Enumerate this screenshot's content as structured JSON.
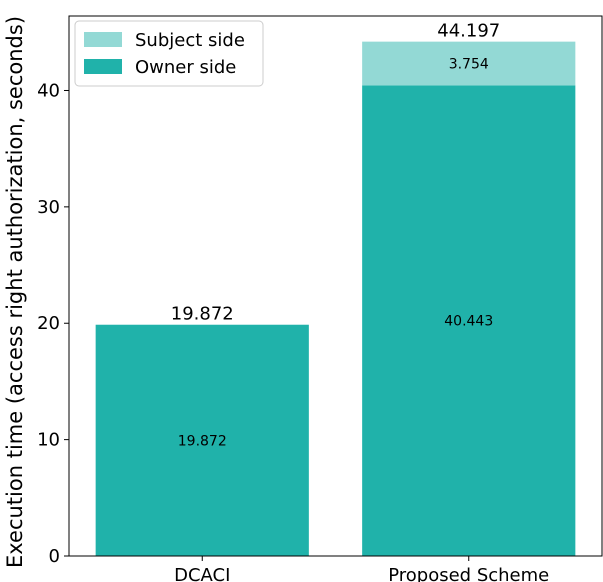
{
  "chart_data": {
    "type": "bar",
    "stacked": true,
    "categories": [
      "DCACI",
      "Proposed Scheme"
    ],
    "series": [
      {
        "name": "Owner side",
        "values": [
          19.872,
          40.443
        ],
        "color": "#20b2aa"
      },
      {
        "name": "Subject side",
        "values": [
          0,
          3.754
        ],
        "color": "#93d9d5"
      }
    ],
    "segment_labels": [
      [
        "19.872",
        "40.443"
      ],
      [
        null,
        "3.754"
      ]
    ],
    "totals": [
      "19.872",
      "44.197"
    ],
    "ylabel": "Execution time (access right authorization, seconds)",
    "ylim": [
      0,
      46.4
    ],
    "yticks": [
      0,
      10,
      20,
      30,
      40
    ],
    "grid": false,
    "legend": {
      "position": "top-left",
      "order": [
        "Subject side",
        "Owner side"
      ]
    }
  }
}
